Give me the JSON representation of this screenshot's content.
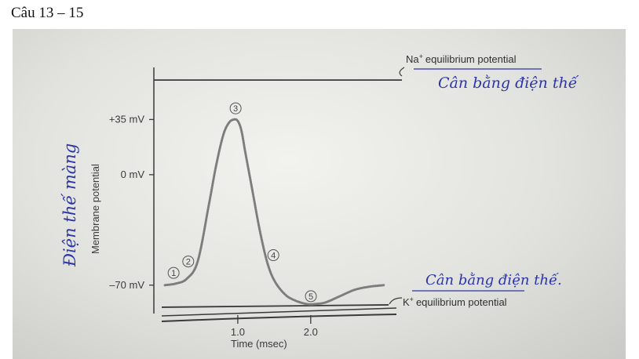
{
  "heading": "Câu 13 – 15",
  "chart_data": {
    "type": "line",
    "xlabel": "Time (msec)",
    "ylabel": "Membrane potential",
    "x_ticks": [
      {
        "value": 1.0,
        "label": "1.0"
      },
      {
        "value": 2.0,
        "label": "2.0"
      }
    ],
    "y_ticks": [
      {
        "value": 35,
        "label": "+35 mV"
      },
      {
        "value": 0,
        "label": "0 mV"
      },
      {
        "value": -70,
        "label": "–70 mV"
      }
    ],
    "xlim": [
      0,
      3.1
    ],
    "ylim": [
      -88,
      68
    ],
    "series": [
      {
        "x": [
          0,
          0.15,
          0.3,
          0.45,
          0.6,
          0.7,
          0.8,
          0.88,
          0.95,
          1.0,
          1.05,
          1.1,
          1.2,
          1.3,
          1.4,
          1.5,
          1.65,
          1.8,
          1.95,
          2.05,
          2.2,
          2.4,
          2.6,
          2.8,
          3.0
        ],
        "y": [
          -70,
          -69,
          -66,
          -55,
          -20,
          5,
          25,
          33,
          35,
          34,
          28,
          15,
          -10,
          -35,
          -55,
          -67,
          -76,
          -80,
          -82,
          -82,
          -81,
          -77,
          -73,
          -71,
          -70
        ]
      }
    ],
    "reference_lines": [
      {
        "name": "Na+ equilibrium potential",
        "value": 60
      },
      {
        "name": "K+ equilibrium potential",
        "value": -84
      }
    ],
    "stage_markers": [
      {
        "label": "1",
        "x": 0.12
      },
      {
        "label": "2",
        "x": 0.45
      },
      {
        "label": "3",
        "x": 0.97
      },
      {
        "label": "4",
        "x": 1.38
      },
      {
        "label": "5",
        "x": 1.97
      }
    ],
    "na_label": "Na",
    "k_label": "K",
    "superscript_plus": "+",
    "eq_suffix": "equilibrium potential"
  },
  "handwriting": {
    "top_right": "Cân bằng điện thế",
    "bottom_right": "Cân bằng điện thế.",
    "left_vertical": "Điện thế màng"
  },
  "colors": {
    "ink_blue": "#2c35a8",
    "curve": "#7d7d7d",
    "axis": "#3a3a3a"
  }
}
